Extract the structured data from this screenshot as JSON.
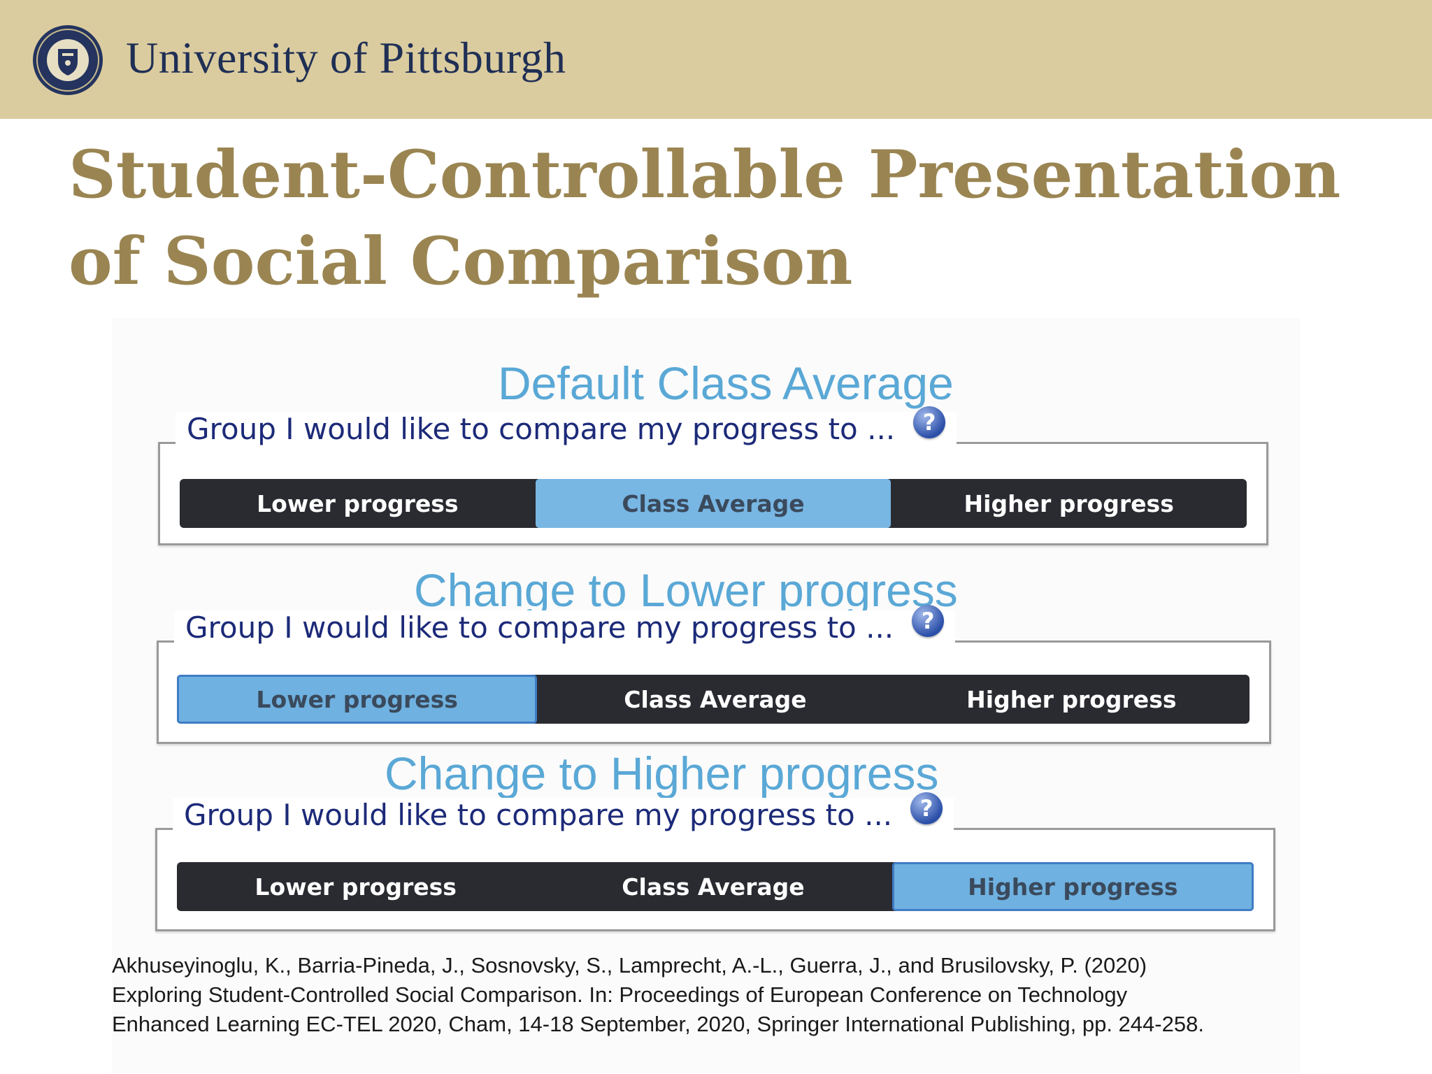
{
  "header": {
    "university_name": "University of Pittsburgh"
  },
  "title": {
    "line1": "Student-Controllable Presentation",
    "line2": "of Social Comparison"
  },
  "panels": [
    {
      "caption": "Default Class Average",
      "legend": "Group I would like to compare my progress to ...",
      "help_icon": "?",
      "options": [
        "Lower progress",
        "Class Average",
        "Higher progress"
      ],
      "selected": "Class Average"
    },
    {
      "caption": "Change to Lower progress",
      "legend": "Group I would like to compare my progress to ...",
      "help_icon": "?",
      "options": [
        "Lower progress",
        "Class Average",
        "Higher progress"
      ],
      "selected": "Lower progress"
    },
    {
      "caption": "Change to Higher progress",
      "legend": "Group I would like to compare my progress to ...",
      "help_icon": "?",
      "options": [
        "Lower progress",
        "Class Average",
        "Higher progress"
      ],
      "selected": "Higher progress"
    }
  ],
  "reference": {
    "line1": "Akhuseyinoglu, K., Barria-Pineda, J., Sosnovsky, S., Lamprecht, A.-L., Guerra, J., and Brusilovsky, P. (2020)",
    "line2": "Exploring Student-Controlled Social Comparison. In: Proceedings of European Conference on Technology",
    "line3": "Enhanced Learning EC-TEL 2020, Cham, 14-18 September, 2020, Springer International Publishing, pp. 244-258."
  },
  "colors": {
    "header_bg": "#dbcc9f",
    "title_gold": "#9a8552",
    "caption_blue": "#5aa8d6",
    "bar_dark": "#2a2b31",
    "selected_blue": "#6fb1e0",
    "legend_navy": "#1c2a78"
  }
}
